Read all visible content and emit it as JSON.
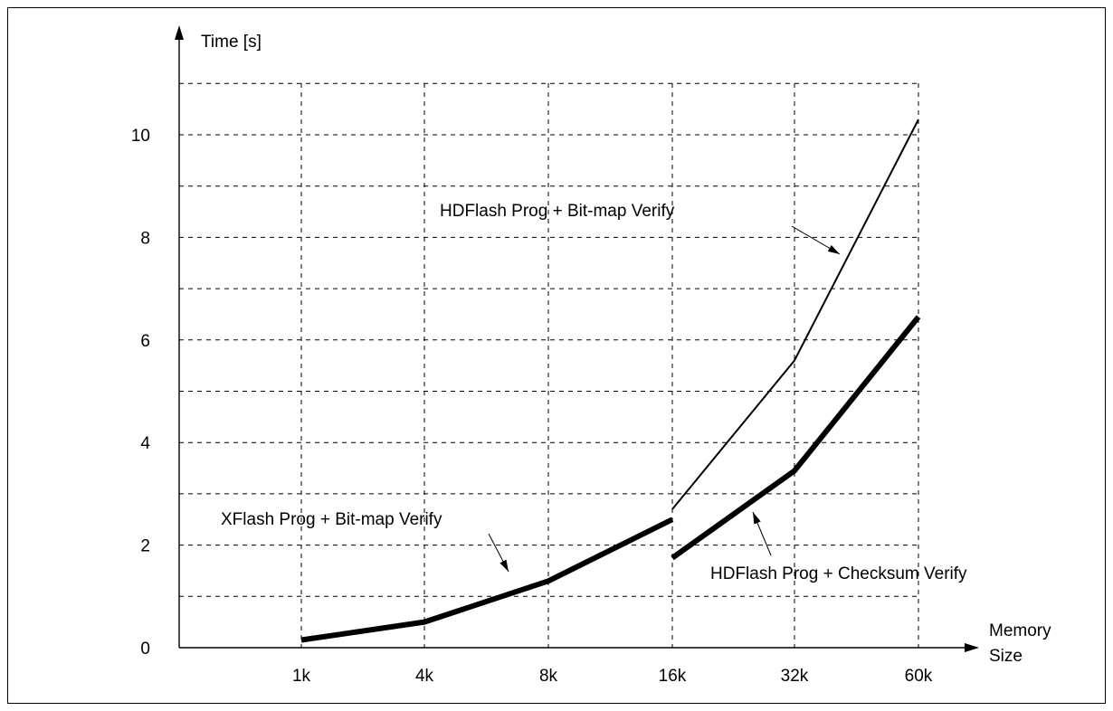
{
  "chart_data": {
    "type": "line",
    "title": "",
    "xlabel": [
      "Memory",
      "Size"
    ],
    "ylabel": "Time [s]",
    "categories": [
      "1k",
      "4k",
      "8k",
      "16k",
      "32k",
      "60k"
    ],
    "ylim": [
      0,
      11
    ],
    "yticks": [
      0,
      2,
      4,
      6,
      8,
      10
    ],
    "grid": true,
    "series": [
      {
        "name": "XFlash Prog + Bit-map Verify",
        "x": [
          "1k",
          "4k",
          "8k",
          "16k"
        ],
        "values": [
          0.15,
          0.5,
          1.3,
          2.5
        ],
        "style": "thick"
      },
      {
        "name": "HDFlash Prog + Bit-map Verify",
        "x": [
          "16k",
          "32k",
          "60k"
        ],
        "values": [
          2.7,
          5.6,
          10.3
        ],
        "style": "thin"
      },
      {
        "name": "HDFlash Prog + Checksum Verify",
        "x": [
          "16k",
          "32k",
          "60k"
        ],
        "values": [
          1.75,
          3.45,
          6.45
        ],
        "style": "thick"
      }
    ]
  }
}
